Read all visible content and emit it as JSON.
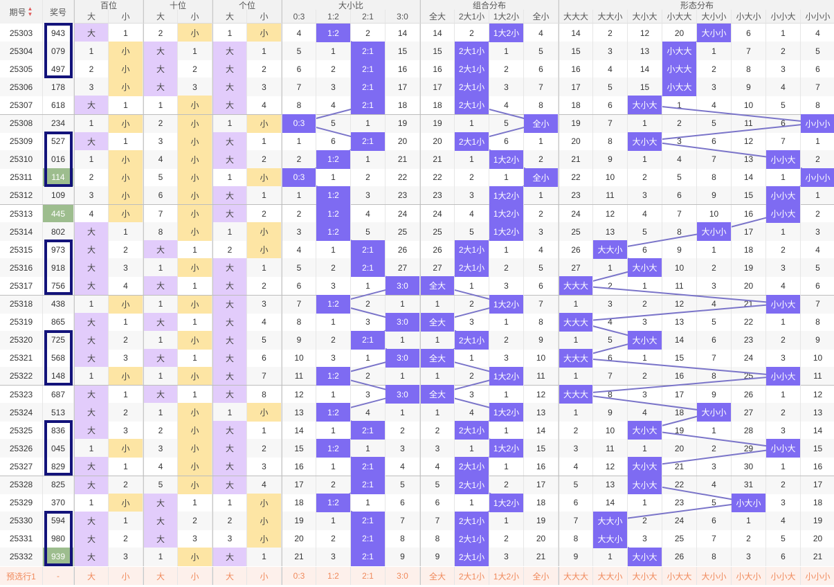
{
  "header": {
    "period": "期号",
    "sort_icon": "sort-arrows-icon",
    "number": "奖号",
    "groups": [
      "百位",
      "十位",
      "个位",
      "大小比",
      "组合分布",
      "形态分布"
    ],
    "digit_sub": [
      "大",
      "小"
    ],
    "ratio_sub": [
      "0:3",
      "1:2",
      "2:1",
      "3:0"
    ],
    "combo_sub": [
      "全大",
      "2大1小",
      "1大2小",
      "全小"
    ],
    "shape_sub": [
      "大大大",
      "大大小",
      "大小大",
      "小大大",
      "大小小",
      "小大小",
      "小小大",
      "小小小"
    ]
  },
  "rows": [
    {
      "p": "25303",
      "n": "943",
      "d": [
        [
          "B",
          1
        ],
        [
          2,
          "S"
        ],
        [
          1,
          "S"
        ]
      ],
      "r": [
        4,
        "1:2",
        2,
        14
      ],
      "c": [
        14,
        2,
        "1大2小",
        4
      ],
      "s": [
        14,
        2,
        12,
        20,
        "大小小",
        6,
        1,
        4
      ]
    },
    {
      "p": "25304",
      "n": "079",
      "d": [
        [
          1,
          "S"
        ],
        [
          "B",
          1
        ],
        [
          "B",
          1
        ]
      ],
      "r": [
        5,
        1,
        "2:1",
        15
      ],
      "c": [
        15,
        "2大1小",
        1,
        5
      ],
      "s": [
        15,
        3,
        13,
        "小大大",
        1,
        7,
        2,
        5
      ]
    },
    {
      "p": "25305",
      "n": "497",
      "d": [
        [
          2,
          "S"
        ],
        [
          "B",
          2
        ],
        [
          "B",
          2
        ]
      ],
      "r": [
        6,
        2,
        "2:1",
        16
      ],
      "c": [
        16,
        "2大1小",
        2,
        6
      ],
      "s": [
        16,
        4,
        14,
        "小大大",
        2,
        8,
        3,
        6
      ]
    },
    {
      "p": "25306",
      "n": "178",
      "d": [
        [
          3,
          "S"
        ],
        [
          "B",
          3
        ],
        [
          "B",
          3
        ]
      ],
      "r": [
        7,
        3,
        "2:1",
        17
      ],
      "c": [
        17,
        "2大1小",
        3,
        7
      ],
      "s": [
        17,
        5,
        15,
        "小大大",
        3,
        9,
        4,
        7
      ]
    },
    {
      "p": "25307",
      "n": "618",
      "d": [
        [
          "B",
          1
        ],
        [
          1,
          "S"
        ],
        [
          "B",
          4
        ]
      ],
      "r": [
        8,
        4,
        "2:1",
        18
      ],
      "c": [
        18,
        "2大1小",
        4,
        8
      ],
      "s": [
        18,
        6,
        "大小大",
        1,
        4,
        10,
        5,
        8
      ]
    },
    {
      "p": "25308",
      "n": "234",
      "d": [
        [
          1,
          "S"
        ],
        [
          2,
          "S"
        ],
        [
          1,
          "S"
        ]
      ],
      "r": [
        "0:3",
        5,
        1,
        19
      ],
      "c": [
        19,
        1,
        5,
        "全小"
      ],
      "s": [
        19,
        7,
        1,
        2,
        5,
        11,
        6,
        "小小小"
      ]
    },
    {
      "p": "25309",
      "n": "527",
      "d": [
        [
          "B",
          1
        ],
        [
          3,
          "S"
        ],
        [
          "B",
          1
        ]
      ],
      "r": [
        1,
        6,
        "2:1",
        20
      ],
      "c": [
        20,
        "2大1小",
        6,
        1
      ],
      "s": [
        20,
        8,
        "大小大",
        3,
        6,
        12,
        7,
        1
      ]
    },
    {
      "p": "25310",
      "n": "016",
      "d": [
        [
          1,
          "S"
        ],
        [
          4,
          "S"
        ],
        [
          "B",
          2
        ]
      ],
      "r": [
        2,
        "1:2",
        1,
        21
      ],
      "c": [
        21,
        1,
        "1大2小",
        2
      ],
      "s": [
        21,
        9,
        1,
        4,
        7,
        13,
        "小小大",
        2
      ]
    },
    {
      "p": "25311",
      "n": "114",
      "d": [
        [
          2,
          "S"
        ],
        [
          5,
          "S"
        ],
        [
          1,
          "S"
        ]
      ],
      "r": [
        "0:3",
        1,
        2,
        22
      ],
      "c": [
        22,
        2,
        1,
        "全小"
      ],
      "s": [
        22,
        10,
        2,
        5,
        8,
        14,
        1,
        "小小小"
      ]
    },
    {
      "p": "25312",
      "n": "109",
      "d": [
        [
          3,
          "S"
        ],
        [
          6,
          "S"
        ],
        [
          "B",
          1
        ]
      ],
      "r": [
        1,
        "1:2",
        3,
        23
      ],
      "c": [
        23,
        3,
        "1大2小",
        1
      ],
      "s": [
        23,
        11,
        3,
        6,
        9,
        15,
        "小小大",
        1
      ]
    },
    {
      "p": "25313",
      "n": "445",
      "d": [
        [
          4,
          "S"
        ],
        [
          7,
          "S"
        ],
        [
          "B",
          2
        ]
      ],
      "r": [
        2,
        "1:2",
        4,
        24
      ],
      "c": [
        24,
        4,
        "1大2小",
        2
      ],
      "s": [
        24,
        12,
        4,
        7,
        10,
        16,
        "小小大",
        2
      ]
    },
    {
      "p": "25314",
      "n": "802",
      "d": [
        [
          "B",
          1
        ],
        [
          8,
          "S"
        ],
        [
          1,
          "S"
        ]
      ],
      "r": [
        3,
        "1:2",
        5,
        25
      ],
      "c": [
        25,
        5,
        "1大2小",
        3
      ],
      "s": [
        25,
        13,
        5,
        8,
        "大小小",
        17,
        1,
        3
      ]
    },
    {
      "p": "25315",
      "n": "973",
      "d": [
        [
          "B",
          2
        ],
        [
          "B",
          1
        ],
        [
          2,
          "S"
        ]
      ],
      "r": [
        4,
        1,
        "2:1",
        26
      ],
      "c": [
        26,
        "2大1小",
        1,
        4
      ],
      "s": [
        26,
        "大大小",
        6,
        9,
        1,
        18,
        2,
        4
      ]
    },
    {
      "p": "25316",
      "n": "918",
      "d": [
        [
          "B",
          3
        ],
        [
          1,
          "S"
        ],
        [
          "B",
          1
        ]
      ],
      "r": [
        5,
        2,
        "2:1",
        27
      ],
      "c": [
        27,
        "2大1小",
        2,
        5
      ],
      "s": [
        27,
        1,
        "大小大",
        10,
        2,
        19,
        3,
        5
      ]
    },
    {
      "p": "25317",
      "n": "756",
      "d": [
        [
          "B",
          4
        ],
        [
          "B",
          1
        ],
        [
          "B",
          2
        ]
      ],
      "r": [
        6,
        3,
        1,
        "3:0"
      ],
      "c": [
        "全大",
        1,
        3,
        6
      ],
      "s": [
        "大大大",
        2,
        1,
        11,
        3,
        20,
        4,
        6
      ]
    },
    {
      "p": "25318",
      "n": "438",
      "d": [
        [
          1,
          "S"
        ],
        [
          1,
          "S"
        ],
        [
          "B",
          3
        ]
      ],
      "r": [
        7,
        "1:2",
        2,
        1
      ],
      "c": [
        1,
        2,
        "1大2小",
        7
      ],
      "s": [
        1,
        3,
        2,
        12,
        4,
        21,
        "小小大",
        7
      ]
    },
    {
      "p": "25319",
      "n": "865",
      "d": [
        [
          "B",
          1
        ],
        [
          "B",
          1
        ],
        [
          "B",
          4
        ]
      ],
      "r": [
        8,
        1,
        3,
        "3:0"
      ],
      "c": [
        "全大",
        3,
        1,
        8
      ],
      "s": [
        "大大大",
        4,
        3,
        13,
        5,
        22,
        1,
        8
      ]
    },
    {
      "p": "25320",
      "n": "725",
      "d": [
        [
          "B",
          2
        ],
        [
          1,
          "S"
        ],
        [
          "B",
          5
        ]
      ],
      "r": [
        9,
        2,
        "2:1",
        1
      ],
      "c": [
        1,
        "2大1小",
        2,
        9
      ],
      "s": [
        1,
        5,
        "大小大",
        14,
        6,
        23,
        2,
        9
      ]
    },
    {
      "p": "25321",
      "n": "568",
      "d": [
        [
          "B",
          3
        ],
        [
          "B",
          1
        ],
        [
          "B",
          6
        ]
      ],
      "r": [
        10,
        3,
        1,
        "3:0"
      ],
      "c": [
        "全大",
        1,
        3,
        10
      ],
      "s": [
        "大大大",
        6,
        1,
        15,
        7,
        24,
        3,
        10
      ]
    },
    {
      "p": "25322",
      "n": "148",
      "d": [
        [
          1,
          "S"
        ],
        [
          1,
          "S"
        ],
        [
          "B",
          7
        ]
      ],
      "r": [
        11,
        "1:2",
        2,
        1
      ],
      "c": [
        1,
        2,
        "1大2小",
        11
      ],
      "s": [
        1,
        7,
        2,
        16,
        8,
        25,
        "小小大",
        11
      ]
    },
    {
      "p": "25323",
      "n": "687",
      "d": [
        [
          "B",
          1
        ],
        [
          "B",
          1
        ],
        [
          "B",
          8
        ]
      ],
      "r": [
        12,
        1,
        3,
        "3:0"
      ],
      "c": [
        "全大",
        3,
        1,
        12
      ],
      "s": [
        "大大大",
        8,
        3,
        17,
        9,
        26,
        1,
        12
      ]
    },
    {
      "p": "25324",
      "n": "513",
      "d": [
        [
          "B",
          2
        ],
        [
          1,
          "S"
        ],
        [
          1,
          "S"
        ]
      ],
      "r": [
        13,
        "1:2",
        4,
        1
      ],
      "c": [
        1,
        4,
        "1大2小",
        13
      ],
      "s": [
        1,
        9,
        4,
        18,
        "大小小",
        27,
        2,
        13
      ]
    },
    {
      "p": "25325",
      "n": "836",
      "d": [
        [
          "B",
          3
        ],
        [
          2,
          "S"
        ],
        [
          "B",
          1
        ]
      ],
      "r": [
        14,
        1,
        "2:1",
        2
      ],
      "c": [
        2,
        "2大1小",
        1,
        14
      ],
      "s": [
        2,
        10,
        "大小大",
        19,
        1,
        28,
        3,
        14
      ]
    },
    {
      "p": "25326",
      "n": "045",
      "d": [
        [
          1,
          "S"
        ],
        [
          3,
          "S"
        ],
        [
          "B",
          2
        ]
      ],
      "r": [
        15,
        "1:2",
        1,
        3
      ],
      "c": [
        3,
        1,
        "1大2小",
        15
      ],
      "s": [
        3,
        11,
        1,
        20,
        2,
        29,
        "小小大",
        15
      ]
    },
    {
      "p": "25327",
      "n": "829",
      "d": [
        [
          "B",
          1
        ],
        [
          4,
          "S"
        ],
        [
          "B",
          3
        ]
      ],
      "r": [
        16,
        1,
        "2:1",
        4
      ],
      "c": [
        4,
        "2大1小",
        1,
        16
      ],
      "s": [
        4,
        12,
        "大小大",
        21,
        3,
        30,
        1,
        16
      ]
    },
    {
      "p": "25328",
      "n": "825",
      "d": [
        [
          "B",
          2
        ],
        [
          5,
          "S"
        ],
        [
          "B",
          4
        ]
      ],
      "r": [
        17,
        2,
        "2:1",
        5
      ],
      "c": [
        5,
        "2大1小",
        2,
        17
      ],
      "s": [
        5,
        13,
        "大小大",
        22,
        4,
        31,
        2,
        17
      ]
    },
    {
      "p": "25329",
      "n": "370",
      "d": [
        [
          1,
          "S"
        ],
        [
          "B",
          1
        ],
        [
          1,
          "S"
        ]
      ],
      "r": [
        18,
        "1:2",
        1,
        6
      ],
      "c": [
        6,
        1,
        "1大2小",
        18
      ],
      "s": [
        6,
        14,
        1,
        23,
        5,
        "小大小",
        3,
        18
      ]
    },
    {
      "p": "25330",
      "n": "594",
      "d": [
        [
          "B",
          1
        ],
        [
          "B",
          2
        ],
        [
          2,
          "S"
        ]
      ],
      "r": [
        19,
        1,
        "2:1",
        7
      ],
      "c": [
        7,
        "2大1小",
        1,
        19
      ],
      "s": [
        7,
        "大大小",
        2,
        24,
        6,
        1,
        4,
        19
      ]
    },
    {
      "p": "25331",
      "n": "980",
      "d": [
        [
          "B",
          2
        ],
        [
          "B",
          3
        ],
        [
          3,
          "S"
        ]
      ],
      "r": [
        20,
        2,
        "2:1",
        8
      ],
      "c": [
        8,
        "2大1小",
        2,
        20
      ],
      "s": [
        8,
        "大大小",
        3,
        25,
        7,
        2,
        5,
        20
      ]
    },
    {
      "p": "25332",
      "n": "939",
      "d": [
        [
          "B",
          3
        ],
        [
          1,
          "S"
        ],
        [
          "B",
          1
        ]
      ],
      "r": [
        21,
        3,
        "2:1",
        9
      ],
      "c": [
        9,
        "2大1小",
        3,
        21
      ],
      "s": [
        9,
        1,
        "大小大",
        26,
        8,
        3,
        6,
        21
      ]
    }
  ],
  "green_rows": [
    8,
    10,
    29
  ],
  "boxes": [
    [
      0,
      2
    ],
    [
      6,
      8
    ],
    [
      12,
      14
    ],
    [
      17,
      19
    ],
    [
      22,
      24
    ],
    [
      27,
      29
    ]
  ],
  "preselect": {
    "label": "预选行1",
    "number": "-"
  },
  "colors": {
    "hit": "#7e6bf2",
    "big": "#e2ccfb",
    "small": "#fde5a4",
    "green": "#9dbd8e",
    "box": "#13137a",
    "line": "#7a74c9",
    "pre": "#f08a5c"
  }
}
